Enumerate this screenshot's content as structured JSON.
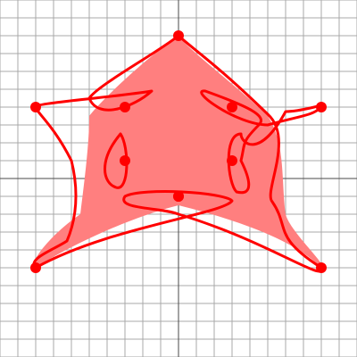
{
  "grid": {
    "visible": true,
    "line_color": "#a9a9a9",
    "axis_color": "#4a4a4a"
  },
  "shape": {
    "type": "closed bezier curve",
    "fill_color": "#ff7f7f",
    "stroke_color": "#ff0000",
    "handle_color": "#ff0000",
    "control_point_count": 11
  }
}
